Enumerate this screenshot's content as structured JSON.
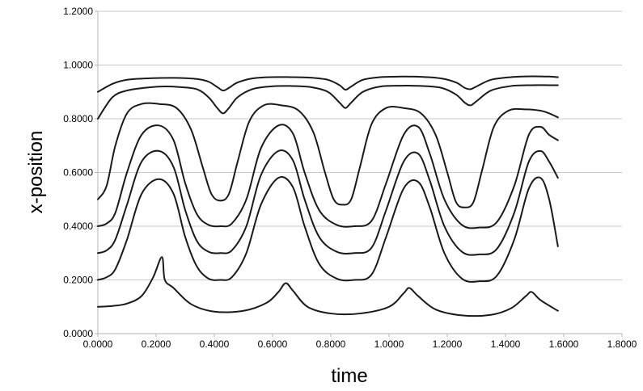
{
  "chart_data": {
    "type": "line",
    "title": "",
    "xlabel": "time",
    "ylabel": "x-position",
    "xlim": [
      0,
      1.8
    ],
    "ylim": [
      0,
      1.2
    ],
    "xticks": [
      "0.0000",
      "0.2000",
      "0.4000",
      "0.6000",
      "0.8000",
      "1.0000",
      "1.2000",
      "1.4000",
      "1.6000",
      "1.8000"
    ],
    "yticks": [
      "0.0000",
      "0.2000",
      "0.4000",
      "0.6000",
      "0.8000",
      "1.0000",
      "1.2000"
    ],
    "grid": "horizontal",
    "legend": "none",
    "line_color": "#1a1a1a",
    "series": [
      {
        "x": [
          0.0,
          0.05,
          0.1,
          0.15,
          0.19,
          0.22,
          0.23,
          0.26,
          0.32,
          0.4,
          0.5,
          0.58,
          0.62,
          0.645,
          0.67,
          0.72,
          0.8,
          0.9,
          1.0,
          1.05,
          1.07,
          1.1,
          1.16,
          1.25,
          1.35,
          1.42,
          1.47,
          1.49,
          1.52,
          1.58
        ],
        "y": [
          0.1,
          0.103,
          0.112,
          0.14,
          0.21,
          0.285,
          0.2,
          0.17,
          0.11,
          0.082,
          0.085,
          0.115,
          0.155,
          0.188,
          0.16,
          0.1,
          0.075,
          0.075,
          0.1,
          0.15,
          0.17,
          0.14,
          0.09,
          0.068,
          0.07,
          0.095,
          0.14,
          0.155,
          0.125,
          0.085
        ]
      },
      {
        "x": [
          0.0,
          0.03,
          0.06,
          0.1,
          0.15,
          0.21,
          0.26,
          0.3,
          0.34,
          0.38,
          0.42,
          0.46,
          0.51,
          0.56,
          0.62,
          0.67,
          0.71,
          0.76,
          0.82,
          0.88,
          0.94,
          0.99,
          1.05,
          1.1,
          1.14,
          1.19,
          1.25,
          1.31,
          1.37,
          1.43,
          1.48,
          1.52,
          1.55,
          1.58
        ],
        "y": [
          0.2,
          0.21,
          0.24,
          0.35,
          0.52,
          0.575,
          0.52,
          0.36,
          0.25,
          0.205,
          0.2,
          0.21,
          0.3,
          0.48,
          0.58,
          0.545,
          0.4,
          0.26,
          0.205,
          0.2,
          0.22,
          0.36,
          0.54,
          0.565,
          0.47,
          0.3,
          0.205,
          0.195,
          0.215,
          0.35,
          0.54,
          0.58,
          0.5,
          0.325
        ]
      },
      {
        "x": [
          0.0,
          0.03,
          0.06,
          0.1,
          0.15,
          0.21,
          0.26,
          0.3,
          0.34,
          0.38,
          0.42,
          0.46,
          0.51,
          0.56,
          0.62,
          0.67,
          0.71,
          0.76,
          0.82,
          0.88,
          0.94,
          0.99,
          1.05,
          1.1,
          1.14,
          1.19,
          1.25,
          1.31,
          1.37,
          1.43,
          1.48,
          1.52,
          1.55,
          1.58
        ],
        "y": [
          0.3,
          0.31,
          0.35,
          0.48,
          0.64,
          0.68,
          0.62,
          0.46,
          0.345,
          0.305,
          0.3,
          0.31,
          0.4,
          0.59,
          0.68,
          0.645,
          0.5,
          0.36,
          0.305,
          0.3,
          0.32,
          0.46,
          0.64,
          0.67,
          0.57,
          0.4,
          0.305,
          0.295,
          0.315,
          0.45,
          0.64,
          0.68,
          0.64,
          0.58
        ]
      },
      {
        "x": [
          0.0,
          0.03,
          0.06,
          0.1,
          0.15,
          0.21,
          0.26,
          0.3,
          0.34,
          0.38,
          0.42,
          0.46,
          0.51,
          0.56,
          0.62,
          0.67,
          0.71,
          0.76,
          0.82,
          0.88,
          0.94,
          0.99,
          1.05,
          1.1,
          1.14,
          1.19,
          1.25,
          1.31,
          1.37,
          1.43,
          1.48,
          1.52,
          1.55,
          1.58
        ],
        "y": [
          0.4,
          0.41,
          0.45,
          0.6,
          0.74,
          0.775,
          0.72,
          0.56,
          0.445,
          0.405,
          0.4,
          0.41,
          0.5,
          0.69,
          0.775,
          0.745,
          0.6,
          0.46,
          0.405,
          0.4,
          0.42,
          0.56,
          0.74,
          0.77,
          0.67,
          0.5,
          0.405,
          0.395,
          0.415,
          0.55,
          0.74,
          0.77,
          0.74,
          0.72
        ]
      },
      {
        "x": [
          0.0,
          0.03,
          0.06,
          0.1,
          0.15,
          0.21,
          0.27,
          0.32,
          0.36,
          0.39,
          0.42,
          0.45,
          0.48,
          0.52,
          0.57,
          0.63,
          0.69,
          0.74,
          0.78,
          0.81,
          0.84,
          0.87,
          0.9,
          0.94,
          0.99,
          1.05,
          1.11,
          1.16,
          1.2,
          1.23,
          1.26,
          1.29,
          1.32,
          1.36,
          1.41,
          1.47,
          1.52,
          1.55,
          1.58
        ],
        "y": [
          0.5,
          0.55,
          0.7,
          0.82,
          0.855,
          0.855,
          0.84,
          0.76,
          0.62,
          0.52,
          0.495,
          0.52,
          0.64,
          0.79,
          0.85,
          0.85,
          0.83,
          0.75,
          0.6,
          0.5,
          0.48,
          0.5,
          0.62,
          0.78,
          0.84,
          0.84,
          0.82,
          0.74,
          0.6,
          0.49,
          0.47,
          0.49,
          0.61,
          0.77,
          0.83,
          0.835,
          0.83,
          0.82,
          0.805
        ]
      },
      {
        "x": [
          0.0,
          0.05,
          0.1,
          0.16,
          0.22,
          0.28,
          0.34,
          0.38,
          0.41,
          0.43,
          0.45,
          0.48,
          0.53,
          0.59,
          0.66,
          0.73,
          0.79,
          0.83,
          0.85,
          0.87,
          0.91,
          0.97,
          1.04,
          1.11,
          1.18,
          1.23,
          1.26,
          1.28,
          1.3,
          1.35,
          1.42,
          1.49,
          1.55,
          1.58
        ],
        "y": [
          0.8,
          0.88,
          0.905,
          0.915,
          0.92,
          0.918,
          0.91,
          0.88,
          0.84,
          0.82,
          0.84,
          0.88,
          0.91,
          0.92,
          0.922,
          0.918,
          0.9,
          0.86,
          0.84,
          0.86,
          0.9,
          0.92,
          0.923,
          0.922,
          0.915,
          0.89,
          0.86,
          0.85,
          0.865,
          0.905,
          0.922,
          0.925,
          0.925,
          0.925
        ]
      },
      {
        "x": [
          0.0,
          0.05,
          0.1,
          0.16,
          0.22,
          0.28,
          0.34,
          0.38,
          0.41,
          0.43,
          0.45,
          0.48,
          0.53,
          0.59,
          0.66,
          0.73,
          0.79,
          0.83,
          0.85,
          0.87,
          0.91,
          0.97,
          1.04,
          1.11,
          1.18,
          1.23,
          1.26,
          1.28,
          1.3,
          1.35,
          1.42,
          1.49,
          1.55,
          1.58
        ],
        "y": [
          0.9,
          0.93,
          0.945,
          0.95,
          0.952,
          0.952,
          0.948,
          0.938,
          0.918,
          0.905,
          0.915,
          0.935,
          0.95,
          0.955,
          0.955,
          0.953,
          0.945,
          0.925,
          0.908,
          0.92,
          0.945,
          0.955,
          0.957,
          0.956,
          0.95,
          0.935,
          0.915,
          0.91,
          0.92,
          0.945,
          0.955,
          0.958,
          0.957,
          0.955
        ]
      }
    ]
  }
}
